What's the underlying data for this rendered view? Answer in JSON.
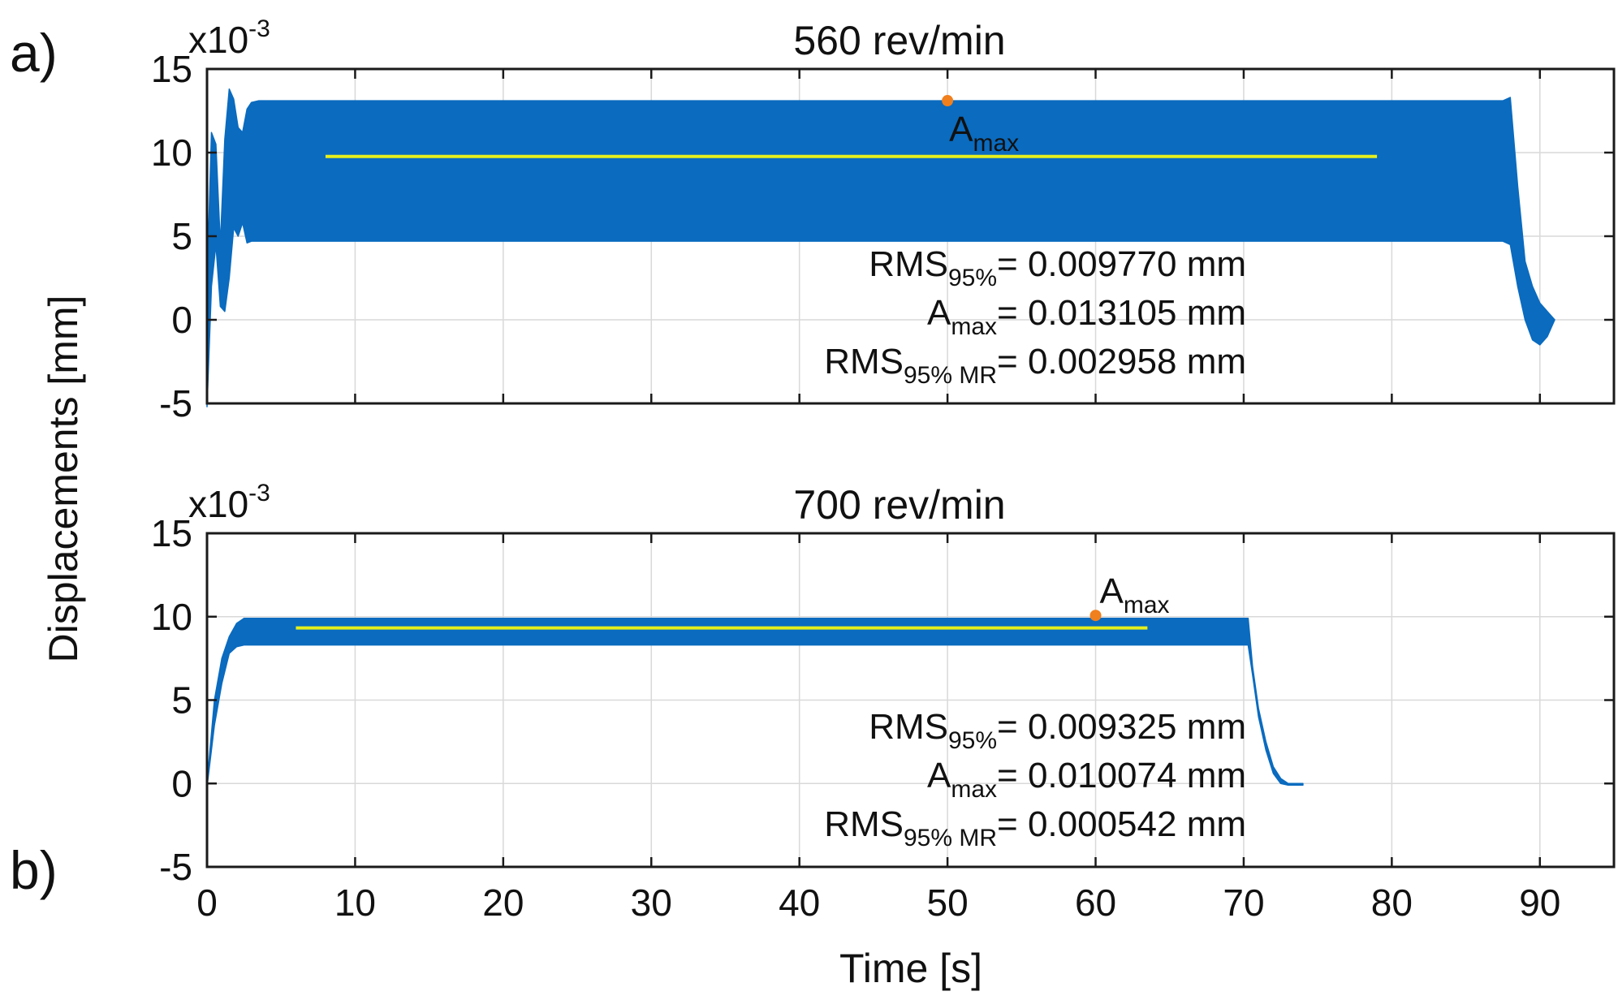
{
  "figure": {
    "ylabel": "Displacements [mm]",
    "xlabel": "Time [s]",
    "exponent_base": "x10",
    "exponent_power": "-3",
    "x_ticks": [
      "0",
      "10",
      "20",
      "30",
      "40",
      "50",
      "60",
      "70",
      "80",
      "90"
    ],
    "y_ticks": [
      "15",
      "10",
      "5",
      "0",
      "-5"
    ]
  },
  "colors": {
    "signal": "#0a6bbf",
    "rms_line": "#e6ef1c",
    "amax_marker": "#f07f1d",
    "grid": "#d9d9d9",
    "axes": "#1a1a1a"
  },
  "chart_data": [
    {
      "type": "area",
      "panel_label": "a)",
      "title": "560 rev/min",
      "xlabel": "Time [s]",
      "ylabel": "Displacements [mm]",
      "y_scale_note": "x10^-3",
      "xlim": [
        0,
        95
      ],
      "ylim": [
        -5,
        15
      ],
      "grid": true,
      "envelope": {
        "t": [
          0,
          0.3,
          0.6,
          0.9,
          1.2,
          1.5,
          1.8,
          2.1,
          2.4,
          2.7,
          3.0,
          3.5,
          87.5,
          88.0,
          88.5,
          89.0,
          89.5,
          90.0,
          90.5,
          91.0
        ],
        "upper": [
          2,
          11.2,
          10.5,
          4.5,
          10.8,
          13.8,
          13.2,
          11.5,
          11.2,
          12.6,
          13.0,
          13.1,
          13.1,
          13.3,
          8.0,
          3.5,
          2.0,
          1.0,
          0.5,
          0.0
        ],
        "lower": [
          -5.2,
          2.0,
          4.5,
          0.8,
          0.5,
          2.5,
          5.5,
          5.0,
          5.8,
          4.6,
          4.7,
          4.7,
          4.7,
          4.5,
          2.0,
          0.0,
          -1.2,
          -1.5,
          -1.0,
          0.0
        ]
      },
      "rms_line": {
        "t_start": 8,
        "t_end": 79,
        "value": 9.77
      },
      "a_max": {
        "label": "A",
        "label_sub": "max",
        "t": 50,
        "value": 13.105
      },
      "annotations": [
        {
          "name": "RMS",
          "sub": "95%",
          "text": "= 0.009770 mm"
        },
        {
          "name": "A",
          "sub": "max",
          "text": "= 0.013105 mm"
        },
        {
          "name": "RMS",
          "sub": "95% MR",
          "text": "= 0.002958 mm"
        }
      ]
    },
    {
      "type": "area",
      "panel_label": "b)",
      "title": "700 rev/min",
      "xlabel": "Time [s]",
      "ylabel": "Displacements [mm]",
      "y_scale_note": "x10^-3",
      "xlim": [
        0,
        95
      ],
      "ylim": [
        -5,
        15
      ],
      "grid": true,
      "envelope": {
        "t": [
          0,
          0.5,
          1.0,
          1.5,
          2.0,
          2.5,
          70.3,
          70.6,
          71.0,
          71.5,
          72.0,
          72.5,
          73.0,
          74.0
        ],
        "upper": [
          0,
          5.0,
          7.5,
          8.8,
          9.6,
          9.9,
          9.9,
          7.0,
          4.5,
          2.5,
          1.0,
          0.3,
          0.0,
          0.0
        ],
        "lower": [
          -0.2,
          3.5,
          6.0,
          7.8,
          8.2,
          8.3,
          8.3,
          6.5,
          4.0,
          2.0,
          0.6,
          0.0,
          -0.1,
          -0.1
        ]
      },
      "rms_line": {
        "t_start": 6,
        "t_end": 63.5,
        "value": 9.325
      },
      "a_max": {
        "label": "A",
        "label_sub": "max",
        "t": 60,
        "value": 10.074
      },
      "annotations": [
        {
          "name": "RMS",
          "sub": "95%",
          "text": "= 0.009325 mm"
        },
        {
          "name": "A",
          "sub": "max",
          "text": "= 0.010074 mm"
        },
        {
          "name": "RMS",
          "sub": "95% MR",
          "text": "= 0.000542 mm"
        }
      ]
    }
  ]
}
